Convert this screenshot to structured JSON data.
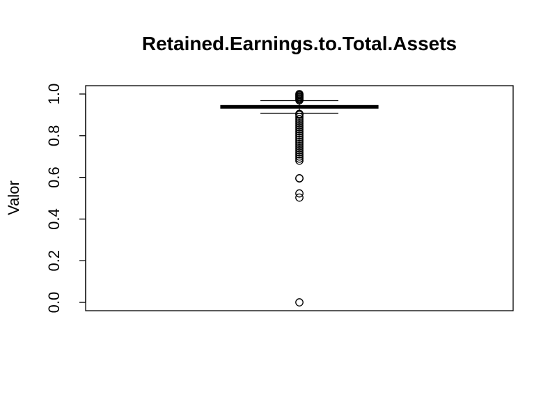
{
  "chart_data": {
    "type": "box",
    "title": "Retained.Earnings.to.Total.Assets",
    "xlabel": "",
    "ylabel": "Valor",
    "ylim": [
      -0.04,
      1.04
    ],
    "yticks": [
      0.0,
      0.2,
      0.4,
      0.6,
      0.8,
      1.0
    ],
    "ytick_labels": [
      "0.0",
      "0.2",
      "0.4",
      "0.6",
      "0.8",
      "1.0"
    ],
    "grid": false,
    "box": {
      "whisker_low": 0.908,
      "q1": 0.932,
      "median": 0.939,
      "q3": 0.945,
      "whisker_high": 0.968
    },
    "outliers": [
      0.0,
      0.503,
      0.523,
      0.595,
      0.596,
      0.68,
      0.69,
      0.7,
      0.71,
      0.72,
      0.73,
      0.74,
      0.75,
      0.76,
      0.77,
      0.78,
      0.79,
      0.8,
      0.81,
      0.82,
      0.83,
      0.84,
      0.85,
      0.86,
      0.87,
      0.88,
      0.89,
      0.9,
      0.905,
      0.97,
      0.975,
      0.98,
      0.985,
      0.99,
      0.995,
      1.0
    ],
    "colors": {
      "box": "#000000",
      "background": "#ffffff"
    }
  }
}
